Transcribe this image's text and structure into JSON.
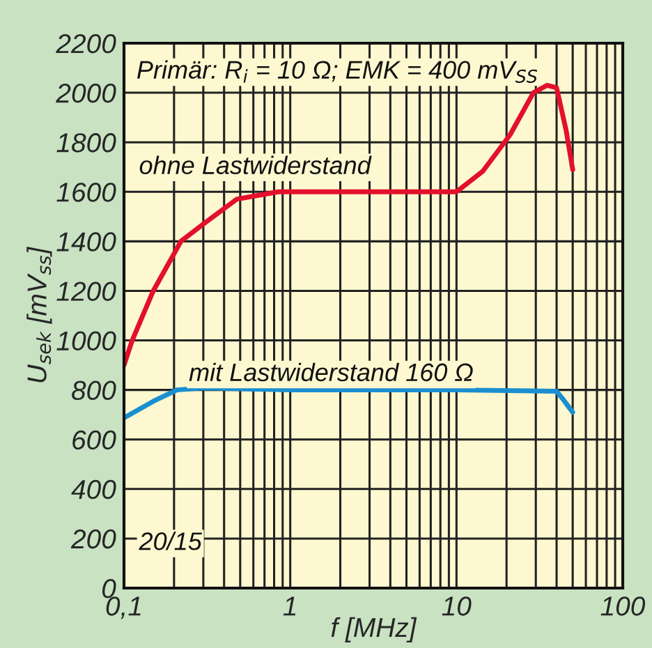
{
  "chart_data": {
    "type": "line",
    "xlabel": "f [MHz]",
    "ylabel": "U$_{sek}$ [mV$_{ss}$]",
    "annotations": [
      "Primär: R$_{i}$ = 10 Ω; EMK = 400 mV$_{SS}$",
      "20/15"
    ],
    "series": [
      {
        "name": "ohne Lastwiderstand",
        "color": "#e3102c",
        "x": [
          0.1,
          0.112,
          0.15,
          0.22,
          0.306,
          0.476,
          0.85,
          1,
          10,
          14.4,
          21,
          29,
          35,
          40,
          45.6,
          50
        ],
        "values": [
          900,
          1000,
          1200,
          1400,
          1474,
          1570,
          1600,
          1600,
          1600,
          1683,
          1830,
          2000,
          2030,
          2020,
          1850,
          1690
        ]
      },
      {
        "name": "mit Lastwiderstand 160 Ω",
        "color": "#1a8fd0",
        "x": [
          0.1,
          0.15,
          0.208,
          0.3,
          1,
          10,
          40,
          44,
          50
        ],
        "values": [
          687,
          754,
          800,
          808,
          800,
          800,
          795,
          760,
          710
        ]
      }
    ],
    "log": "x",
    "xlim": [
      0.1,
      100
    ],
    "ylim": [
      0,
      2200
    ],
    "xticks": [
      {
        "value": 0.1,
        "label": "0,1"
      },
      {
        "value": 0.2,
        "label": null
      },
      {
        "value": 0.3,
        "label": null
      },
      {
        "value": 0.4,
        "label": null
      },
      {
        "value": 0.5,
        "label": null
      },
      {
        "value": 0.6,
        "label": null
      },
      {
        "value": 0.7,
        "label": null
      },
      {
        "value": 0.8,
        "label": null
      },
      {
        "value": 0.9,
        "label": null
      },
      1,
      {
        "value": 2,
        "label": null
      },
      {
        "value": 3,
        "label": null
      },
      {
        "value": 4,
        "label": null
      },
      {
        "value": 5,
        "label": null
      },
      {
        "value": 6,
        "label": null
      },
      {
        "value": 7,
        "label": null
      },
      {
        "value": 8,
        "label": null
      },
      {
        "value": 9,
        "label": null
      },
      10,
      {
        "value": 20,
        "label": null
      },
      {
        "value": 30,
        "label": null
      },
      {
        "value": 40,
        "label": null
      },
      {
        "value": 50,
        "label": null
      },
      {
        "value": 60,
        "label": null
      },
      {
        "value": 70,
        "label": null
      },
      {
        "value": 80,
        "label": null
      },
      {
        "value": 90,
        "label": null
      },
      100
    ],
    "yticks": [
      0,
      200,
      400,
      600,
      800,
      1000,
      1200,
      1400,
      1600,
      1800,
      2000,
      2200
    ],
    "grid": true,
    "legend": false,
    "line_style": "solid",
    "marker": "none"
  }
}
